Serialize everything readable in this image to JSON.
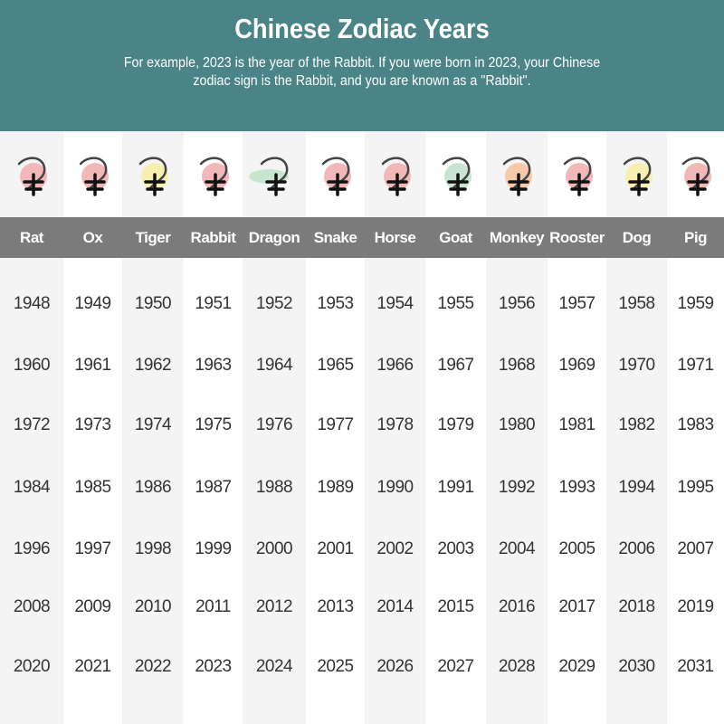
{
  "header": {
    "title": "Chinese Zodiac Years",
    "subtitle": "For example, 2023 is the year of the Rabbit. If you were born in 2023, your Chinese zodiac sign is the Rabbit, and you are known as a \"Rabbit\"."
  },
  "colors": {
    "header_bg": "#4a8487",
    "name_bar": "#7b7b7b",
    "shade": "#f4f4f4"
  },
  "animals": [
    {
      "name": "Rat",
      "icon": "rat-calligraphy-icon",
      "glyph": "子",
      "blob": "#f2b8b8",
      "years": [
        "1948",
        "1960",
        "1972",
        "1984",
        "1996",
        "2008",
        "2020"
      ]
    },
    {
      "name": "Ox",
      "icon": "ox-calligraphy-icon",
      "glyph": "丑",
      "blob": "#f2b8b8",
      "years": [
        "1949",
        "1961",
        "1973",
        "1985",
        "1997",
        "2009",
        "2021"
      ]
    },
    {
      "name": "Tiger",
      "icon": "tiger-calligraphy-icon",
      "glyph": "寅",
      "blob": "#f7efb0",
      "years": [
        "1950",
        "1962",
        "1974",
        "1986",
        "1998",
        "2010",
        "2022"
      ]
    },
    {
      "name": "Rabbit",
      "icon": "rabbit-calligraphy-icon",
      "glyph": "卯",
      "blob": "#f2b8b8",
      "years": [
        "1951",
        "1963",
        "1975",
        "1987",
        "1999",
        "2011",
        "2023"
      ]
    },
    {
      "name": "Dragon",
      "icon": "dragon-calligraphy-icon",
      "glyph": "辰",
      "blob": "#c8e6cf",
      "years": [
        "1952",
        "1964",
        "1976",
        "1988",
        "2000",
        "2012",
        "2024"
      ]
    },
    {
      "name": "Snake",
      "icon": "snake-calligraphy-icon",
      "glyph": "巳",
      "blob": "#f2b8b8",
      "years": [
        "1953",
        "1965",
        "1977",
        "1989",
        "2001",
        "2013",
        "2025"
      ]
    },
    {
      "name": "Horse",
      "icon": "horse-calligraphy-icon",
      "glyph": "午",
      "blob": "#f2b8b8",
      "years": [
        "1954",
        "1966",
        "1978",
        "1990",
        "2002",
        "2014",
        "2026"
      ]
    },
    {
      "name": "Goat",
      "icon": "goat-calligraphy-icon",
      "glyph": "未",
      "blob": "#c8e6cf",
      "years": [
        "1955",
        "1967",
        "1979",
        "1991",
        "2003",
        "2015",
        "2027"
      ]
    },
    {
      "name": "Monkey",
      "icon": "monkey-calligraphy-icon",
      "glyph": "申",
      "blob": "#f7c9a8",
      "years": [
        "1956",
        "1968",
        "1980",
        "1992",
        "2004",
        "2016",
        "2028"
      ]
    },
    {
      "name": "Rooster",
      "icon": "rooster-calligraphy-icon",
      "glyph": "酉",
      "blob": "#f2b8b8",
      "years": [
        "1957",
        "1969",
        "1981",
        "1993",
        "2005",
        "2017",
        "2029"
      ]
    },
    {
      "name": "Dog",
      "icon": "dog-calligraphy-icon",
      "glyph": "戌",
      "blob": "#f7efb0",
      "years": [
        "1958",
        "1970",
        "1982",
        "1994",
        "2006",
        "2018",
        "2030"
      ]
    },
    {
      "name": "Pig",
      "icon": "pig-calligraphy-icon",
      "glyph": "亥",
      "blob": "#f2b8b8",
      "years": [
        "1959",
        "1971",
        "1983",
        "1995",
        "2007",
        "2019",
        "2031"
      ]
    }
  ]
}
